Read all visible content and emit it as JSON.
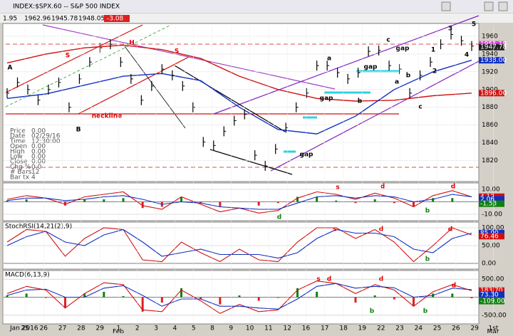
{
  "window": {
    "title": "INDEX:$SPX.60 -- S&P 500 INDEX"
  },
  "toolbar": {
    "values": [
      "1.95",
      "1962.96",
      "1945.78",
      "1948.05"
    ],
    "change": "-3.08"
  },
  "info": [
    [
      "Price",
      "0.00"
    ],
    [
      "Date",
      "02/29/16"
    ],
    [
      "Time",
      "12:30:00"
    ],
    [
      "Open",
      "0.00"
    ],
    [
      "High",
      "0.00"
    ],
    [
      "Low",
      "0.00"
    ],
    [
      "Close",
      "0.00"
    ],
    [
      "Chg %",
      "0.0"
    ],
    [
      "# Bars",
      "12"
    ],
    [
      "Bar tx",
      "4"
    ]
  ],
  "chart_data": {
    "type": "ohlc",
    "days": [
      "25",
      "26",
      "27",
      "28",
      "29",
      "1",
      "2",
      "3",
      "4",
      "5",
      "8",
      "9",
      "10",
      "11",
      "12",
      "16",
      "17",
      "18",
      "19",
      "22",
      "23",
      "24",
      "25",
      "26",
      "29",
      "1st"
    ],
    "months": [
      "Jan 2016",
      "Feb",
      "Mar"
    ],
    "price": {
      "ylim": [
        1798,
        1972
      ],
      "yticks": [
        1820,
        1840,
        1860,
        1880,
        1900,
        1920,
        1940,
        1960
      ],
      "values": [
        1896,
        1908,
        1900,
        1888,
        1900,
        1908,
        1880,
        1912,
        1931,
        1947,
        1951,
        1931,
        1912,
        1888,
        1904,
        1923,
        1916,
        1904,
        1880,
        1841,
        1837,
        1853,
        1865,
        1872,
        1826,
        1814,
        1833,
        1857,
        1880,
        1896,
        1927,
        1927,
        1919,
        1912,
        1919,
        1943,
        1944,
        1927,
        1923,
        1896,
        1916,
        1931,
        1951,
        1962,
        1955,
        1949
      ],
      "series": [
        {
          "name": "MA long",
          "color": "#d01010",
          "values": [
            1930,
            1940,
            1947,
            1950,
            1945,
            1935,
            1915,
            1900,
            1890,
            1887,
            1888,
            1893,
            1896
          ]
        },
        {
          "name": "MA short",
          "color": "#1030c0",
          "values": [
            1890,
            1895,
            1905,
            1915,
            1918,
            1910,
            1880,
            1855,
            1850,
            1870,
            1900,
            1920,
            1933
          ]
        }
      ],
      "last_labels": [
        {
          "value": 1951,
          "label": "1951.19",
          "color": "#e040e0"
        },
        {
          "value": 1947.78,
          "label": "1947.78",
          "color": "#202020"
        },
        {
          "value": 1933,
          "label": "1933.00",
          "color": "#1030c0"
        },
        {
          "value": 1896,
          "label": "1896.00",
          "color": "#d01010"
        }
      ],
      "annotations": [
        {
          "text": "S",
          "color": "#e00000"
        },
        {
          "text": "H",
          "color": "#e00000"
        },
        {
          "text": "S",
          "color": "#e00000"
        },
        {
          "text": "neckline",
          "color": "#e00000"
        },
        {
          "text": "A",
          "color": "#000"
        },
        {
          "text": "B",
          "color": "#000"
        },
        {
          "text": "a",
          "color": "#000"
        },
        {
          "text": "b",
          "color": "#000"
        },
        {
          "text": "c",
          "color": "#000"
        },
        {
          "text": "a",
          "color": "#000"
        },
        {
          "text": "b",
          "color": "#000"
        },
        {
          "text": "c",
          "color": "#000"
        },
        {
          "text": "gap",
          "color": "#000"
        },
        {
          "text": "gap",
          "color": "#000"
        },
        {
          "text": "gap",
          "color": "#000"
        },
        {
          "text": "gap",
          "color": "#000"
        },
        {
          "text": "1",
          "color": "#000"
        },
        {
          "text": "2",
          "color": "#000"
        },
        {
          "text": "3",
          "color": "#000"
        },
        {
          "text": "4",
          "color": "#000"
        },
        {
          "text": "5",
          "color": "#000"
        }
      ]
    },
    "osc": {
      "ylim": [
        -14,
        14
      ],
      "yticks": [
        {
          "value": 10,
          "label": "10.00"
        },
        {
          "value": 0,
          "label": "0.00"
        },
        {
          "value": -10,
          "label": "-10.00"
        }
      ],
      "hist": [
        1,
        2,
        0,
        -3,
        2,
        2,
        3,
        -5,
        -4,
        4,
        -1,
        -4,
        0,
        -3,
        -1,
        4,
        4,
        1,
        -1,
        2,
        -1,
        -4,
        3,
        3,
        0
      ],
      "series": [
        {
          "name": "fast",
          "color": "#d01010",
          "values": [
            2,
            5,
            3,
            -2,
            4,
            6,
            8,
            -3,
            -6,
            4,
            -2,
            -8,
            -5,
            -9,
            -7,
            3,
            8,
            6,
            2,
            7,
            3,
            -4,
            5,
            9,
            4
          ]
        },
        {
          "name": "slow",
          "color": "#1030c0",
          "values": [
            1,
            3,
            3,
            1,
            2,
            4,
            5,
            2,
            -2,
            0,
            -1,
            -4,
            -5,
            -6,
            -6,
            -1,
            4,
            5,
            3,
            5,
            4,
            0,
            2,
            6,
            4
          ]
        }
      ],
      "last_labels": [
        {
          "value": 4.12,
          "label": "4.12",
          "color": "#d01010"
        },
        {
          "value": 2.06,
          "label": "2.06",
          "color": "#1030c0"
        },
        {
          "value": -1.53,
          "label": "-1.53",
          "color": "#108010"
        }
      ],
      "annotations": [
        {
          "text": "s",
          "color": "#e00000"
        },
        {
          "text": "d",
          "color": "#e00000"
        },
        {
          "text": "d",
          "color": "#e00000"
        },
        {
          "text": "d",
          "color": "#108010"
        },
        {
          "text": "b",
          "color": "#108010"
        }
      ]
    },
    "stoch": {
      "title": "StochRSI(14,21(2),9)",
      "ylim": [
        -12,
        112
      ],
      "yticks": [
        {
          "value": 100,
          "label": "100.00"
        },
        {
          "value": 50,
          "label": "50.00"
        },
        {
          "value": 0,
          "label": "0.00"
        }
      ],
      "series": [
        {
          "name": "k",
          "color": "#d01010",
          "values": [
            60,
            95,
            90,
            20,
            70,
            100,
            95,
            10,
            5,
            60,
            30,
            5,
            40,
            10,
            5,
            60,
            100,
            100,
            70,
            95,
            60,
            5,
            50,
            100,
            80
          ]
        },
        {
          "name": "d",
          "color": "#1030c0",
          "values": [
            50,
            75,
            90,
            60,
            50,
            80,
            95,
            60,
            20,
            30,
            40,
            25,
            25,
            25,
            15,
            30,
            70,
            95,
            85,
            85,
            75,
            40,
            30,
            70,
            85
          ]
        }
      ],
      "last_labels": [
        {
          "value": 85,
          "label": "85.00",
          "color": "#1030c0"
        },
        {
          "value": 76.46,
          "label": "76.46",
          "color": "#d01010"
        }
      ],
      "annotations": [
        {
          "text": "s",
          "color": "#e00000"
        },
        {
          "text": "d",
          "color": "#e00000"
        },
        {
          "text": "d",
          "color": "#e00000"
        },
        {
          "text": "b",
          "color": "#108010"
        }
      ]
    },
    "macd": {
      "title": "MACD(6,13,9)",
      "ylim": [
        -700,
        700
      ],
      "yticks": [
        {
          "value": 500,
          "label": "500.00"
        },
        {
          "value": 0,
          "label": "0.00"
        },
        {
          "value": -500,
          "label": "-500.00"
        }
      ],
      "hist": [
        50,
        100,
        -20,
        -300,
        100,
        150,
        30,
        -400,
        -150,
        250,
        -50,
        -200,
        50,
        -100,
        -20,
        250,
        150,
        0,
        -150,
        50,
        -60,
        -250,
        100,
        100,
        -30
      ],
      "series": [
        {
          "name": "macd",
          "color": "#d01010",
          "values": [
            100,
            300,
            200,
            -300,
            100,
            400,
            350,
            -350,
            -400,
            200,
            -100,
            -450,
            -200,
            -400,
            -350,
            200,
            450,
            380,
            100,
            350,
            200,
            -250,
            150,
            350,
            180
          ]
        },
        {
          "name": "signal",
          "color": "#1030c0",
          "values": [
            50,
            200,
            220,
            0,
            0,
            250,
            320,
            50,
            -250,
            -50,
            -50,
            -250,
            -250,
            -300,
            -330,
            -50,
            300,
            380,
            250,
            300,
            260,
            0,
            50,
            250,
            210
          ]
        }
      ],
      "last_labels": [
        {
          "value": 183.7,
          "label": "183.70",
          "color": "#d01010"
        },
        {
          "value": 73.3,
          "label": "73.30",
          "color": "#1030c0"
        },
        {
          "value": -109,
          "label": "-109.00",
          "color": "#108010"
        }
      ],
      "annotations": [
        {
          "text": "s",
          "color": "#e00000"
        },
        {
          "text": "d",
          "color": "#e00000"
        },
        {
          "text": "d",
          "color": "#e00000"
        },
        {
          "text": "d",
          "color": "#e00000"
        },
        {
          "text": "b",
          "color": "#108010"
        },
        {
          "text": "b",
          "color": "#108010"
        }
      ]
    }
  }
}
